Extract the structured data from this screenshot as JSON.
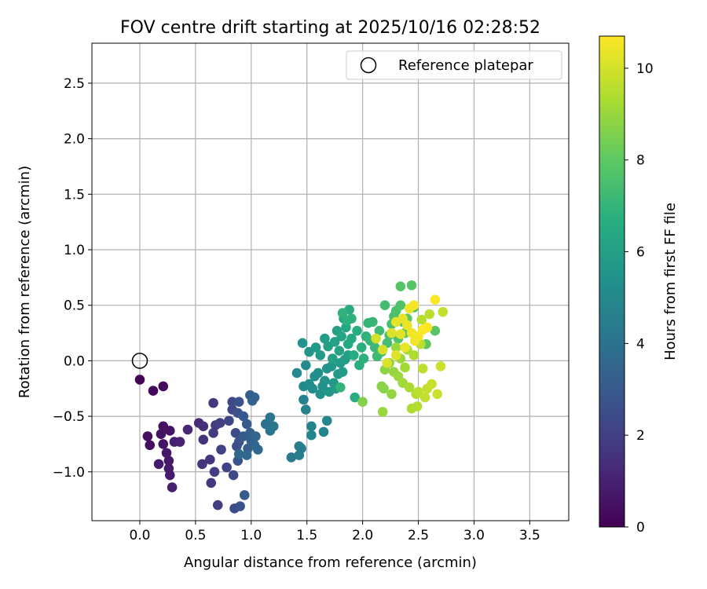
{
  "chart_data": {
    "type": "scatter",
    "title": "FOV centre drift starting at 2025/10/16 02:28:52",
    "xlabel": "Angular distance from reference (arcmin)",
    "ylabel": "Rotation from reference (arcmin)",
    "xlim": [
      -0.43,
      3.85
    ],
    "ylim": [
      -1.44,
      2.86
    ],
    "xticks": [
      0.0,
      0.5,
      1.0,
      1.5,
      2.0,
      2.5,
      3.0,
      3.5
    ],
    "xtick_labels": [
      "0.0",
      "0.5",
      "1.0",
      "1.5",
      "2.0",
      "2.5",
      "3.0",
      "3.5"
    ],
    "yticks": [
      -1.0,
      -0.5,
      0.0,
      0.5,
      1.0,
      1.5,
      2.0,
      2.5
    ],
    "ytick_labels": [
      "−1.0",
      "−0.5",
      "0.0",
      "0.5",
      "1.0",
      "1.5",
      "2.0",
      "2.5"
    ],
    "grid": true,
    "legend": {
      "placement": "upper right",
      "entries": [
        {
          "label": "Reference platepar",
          "marker": "open-circle"
        }
      ]
    },
    "reference_point": {
      "x": 0.0,
      "y": 0.0
    },
    "colorbar": {
      "label": "Hours from first FF file",
      "colormap": "viridis",
      "range": [
        0,
        10.7
      ],
      "ticks": [
        0,
        2,
        4,
        6,
        8,
        10
      ],
      "tick_labels": [
        "0",
        "2",
        "4",
        "6",
        "8",
        "10"
      ]
    },
    "points": [
      [
        0.0,
        -0.17,
        0.05
      ],
      [
        0.12,
        -0.27,
        0.2
      ],
      [
        0.21,
        -0.23,
        0.3
      ],
      [
        0.07,
        -0.68,
        0.35
      ],
      [
        0.09,
        -0.76,
        0.4
      ],
      [
        0.21,
        -0.59,
        0.45
      ],
      [
        0.19,
        -0.66,
        0.5
      ],
      [
        0.27,
        -0.63,
        0.55
      ],
      [
        0.21,
        -0.75,
        0.6
      ],
      [
        0.24,
        -0.83,
        0.65
      ],
      [
        0.26,
        -0.9,
        0.7
      ],
      [
        0.17,
        -0.93,
        0.75
      ],
      [
        0.26,
        -0.97,
        0.8
      ],
      [
        0.27,
        -1.03,
        0.85
      ],
      [
        0.29,
        -1.14,
        0.9
      ],
      [
        0.31,
        -0.73,
        0.95
      ],
      [
        0.36,
        -0.73,
        1.0
      ],
      [
        0.43,
        -0.62,
        1.2
      ],
      [
        0.53,
        -0.56,
        1.3
      ],
      [
        0.57,
        -0.59,
        1.45
      ],
      [
        0.57,
        -0.71,
        1.55
      ],
      [
        0.56,
        -0.93,
        1.6
      ],
      [
        0.63,
        -0.89,
        1.65
      ],
      [
        0.64,
        -1.1,
        1.7
      ],
      [
        0.66,
        -0.38,
        1.75
      ],
      [
        0.68,
        -0.58,
        1.8
      ],
      [
        0.66,
        -0.65,
        1.85
      ],
      [
        0.67,
        -1.0,
        1.9
      ],
      [
        0.7,
        -1.3,
        1.95
      ],
      [
        0.72,
        -0.56,
        2.05
      ],
      [
        0.73,
        -0.8,
        2.1
      ],
      [
        0.78,
        -0.96,
        2.15
      ],
      [
        0.8,
        -0.54,
        2.25
      ],
      [
        0.83,
        -0.37,
        2.3
      ],
      [
        0.83,
        -0.44,
        2.35
      ],
      [
        0.84,
        -1.03,
        2.4
      ],
      [
        0.85,
        -1.33,
        2.45
      ],
      [
        0.86,
        -0.65,
        2.5
      ],
      [
        0.87,
        -0.77,
        2.55
      ],
      [
        0.88,
        -0.47,
        2.6
      ],
      [
        0.89,
        -0.37,
        2.65
      ],
      [
        0.89,
        -0.73,
        2.7
      ],
      [
        0.9,
        -1.31,
        2.75
      ],
      [
        0.88,
        -0.9,
        2.8
      ],
      [
        0.93,
        -0.5,
        2.9
      ],
      [
        0.93,
        -0.68,
        3.0
      ],
      [
        0.94,
        -1.21,
        3.05
      ],
      [
        0.96,
        -0.57,
        3.1
      ],
      [
        0.97,
        -0.79,
        3.15
      ],
      [
        0.99,
        -0.31,
        3.2
      ],
      [
        0.99,
        -0.65,
        3.25
      ],
      [
        1.0,
        -0.72,
        3.3
      ],
      [
        1.01,
        -0.36,
        3.35
      ],
      [
        1.03,
        -0.33,
        3.4
      ],
      [
        1.03,
        -0.76,
        3.45
      ],
      [
        1.04,
        -0.68,
        3.5
      ],
      [
        1.06,
        -0.8,
        3.55
      ],
      [
        0.89,
        -0.84,
        3.6
      ],
      [
        0.96,
        -0.85,
        3.65
      ],
      [
        1.13,
        -0.57,
        4.0
      ],
      [
        1.17,
        -0.51,
        4.05
      ],
      [
        1.17,
        -0.63,
        4.1
      ],
      [
        1.2,
        -0.59,
        4.15
      ],
      [
        1.36,
        -0.87,
        4.4
      ],
      [
        1.43,
        -0.85,
        4.45
      ],
      [
        1.43,
        -0.77,
        4.5
      ],
      [
        1.45,
        -0.79,
        4.55
      ],
      [
        1.47,
        -0.35,
        4.6
      ],
      [
        1.49,
        -0.44,
        4.7
      ],
      [
        1.54,
        -0.59,
        4.75
      ],
      [
        1.54,
        -0.67,
        4.8
      ],
      [
        1.65,
        -0.64,
        4.85
      ],
      [
        1.68,
        -0.54,
        4.9
      ],
      [
        1.41,
        -0.11,
        5.0
      ],
      [
        1.47,
        -0.23,
        5.05
      ],
      [
        1.49,
        -0.04,
        5.1
      ],
      [
        1.55,
        -0.25,
        5.15
      ],
      [
        1.52,
        -0.21,
        5.2
      ],
      [
        1.57,
        -0.14,
        5.25
      ],
      [
        1.6,
        -0.11,
        5.3
      ],
      [
        1.62,
        -0.3,
        5.35
      ],
      [
        1.64,
        -0.23,
        5.4
      ],
      [
        1.66,
        -0.18,
        5.45
      ],
      [
        1.68,
        -0.07,
        5.5
      ],
      [
        1.7,
        -0.28,
        5.55
      ],
      [
        1.72,
        -0.05,
        5.6
      ],
      [
        1.74,
        -0.2,
        5.65
      ],
      [
        1.76,
        -0.25,
        5.7
      ],
      [
        1.78,
        -0.12,
        5.75
      ],
      [
        1.8,
        -0.02,
        5.8
      ],
      [
        1.82,
        -0.1,
        5.85
      ],
      [
        1.84,
        0.01,
        5.9
      ],
      [
        1.87,
        0.05,
        5.95
      ],
      [
        1.46,
        0.16,
        5.5
      ],
      [
        1.52,
        0.08,
        5.6
      ],
      [
        1.58,
        0.12,
        5.7
      ],
      [
        1.62,
        0.05,
        5.8
      ],
      [
        1.66,
        0.2,
        5.9
      ],
      [
        1.69,
        0.13,
        6.0
      ],
      [
        1.73,
        0.02,
        6.05
      ],
      [
        1.75,
        0.17,
        6.1
      ],
      [
        1.77,
        0.27,
        6.15
      ],
      [
        1.79,
        0.09,
        6.2
      ],
      [
        1.81,
        0.22,
        6.25
      ],
      [
        1.83,
        0.38,
        6.3
      ],
      [
        1.85,
        0.3,
        6.35
      ],
      [
        1.87,
        0.15,
        6.4
      ],
      [
        1.88,
        0.46,
        6.45
      ],
      [
        1.9,
        0.2,
        6.5
      ],
      [
        1.92,
        0.05,
        6.55
      ],
      [
        1.93,
        -0.33,
        6.6
      ],
      [
        1.95,
        0.27,
        6.65
      ],
      [
        1.97,
        -0.04,
        6.7
      ],
      [
        1.99,
        0.12,
        6.75
      ],
      [
        2.01,
        0.02,
        6.8
      ],
      [
        2.03,
        0.22,
        6.9
      ],
      [
        1.9,
        0.38,
        6.85
      ],
      [
        1.8,
        -0.24,
        6.95
      ],
      [
        1.82,
        0.43,
        6.9
      ],
      [
        1.86,
        0.36,
        6.8
      ],
      [
        2.05,
        0.34,
        7.0
      ],
      [
        2.07,
        0.18,
        7.05
      ],
      [
        2.09,
        0.35,
        7.1
      ],
      [
        2.11,
        0.12,
        7.15
      ],
      [
        2.13,
        0.04,
        7.2
      ],
      [
        2.15,
        0.27,
        7.25
      ],
      [
        2.17,
        0.08,
        7.3
      ],
      [
        2.2,
        0.5,
        7.35
      ],
      [
        2.22,
        0.16,
        7.4
      ],
      [
        2.24,
        0.23,
        7.45
      ],
      [
        2.26,
        0.33,
        7.5
      ],
      [
        2.28,
        0.4,
        7.55
      ],
      [
        2.3,
        0.45,
        7.6
      ],
      [
        2.32,
        0.2,
        7.65
      ],
      [
        2.34,
        0.67,
        7.8
      ],
      [
        2.34,
        0.5,
        7.7
      ],
      [
        2.36,
        0.35,
        7.75
      ],
      [
        2.38,
        0.25,
        7.9
      ],
      [
        2.4,
        0.38,
        7.95
      ],
      [
        2.44,
        0.68,
        7.85
      ],
      [
        2.46,
        0.48,
        7.8
      ],
      [
        2.65,
        0.27,
        7.9
      ],
      [
        2.57,
        0.15,
        7.95
      ],
      [
        2.0,
        -0.37,
        8.6
      ],
      [
        2.17,
        -0.23,
        8.7
      ],
      [
        2.19,
        -0.25,
        8.75
      ],
      [
        2.2,
        -0.08,
        8.8
      ],
      [
        2.24,
        -0.02,
        8.85
      ],
      [
        2.26,
        -0.3,
        8.9
      ],
      [
        2.28,
        -0.1,
        8.95
      ],
      [
        2.3,
        0.12,
        9.0
      ],
      [
        2.32,
        -0.14,
        9.05
      ],
      [
        2.34,
        0.02,
        9.1
      ],
      [
        2.36,
        -0.2,
        9.15
      ],
      [
        2.38,
        -0.06,
        9.2
      ],
      [
        2.4,
        0.1,
        9.25
      ],
      [
        2.42,
        -0.24,
        9.3
      ],
      [
        2.44,
        -0.43,
        9.35
      ],
      [
        2.46,
        0.05,
        9.4
      ],
      [
        2.48,
        -0.3,
        9.45
      ],
      [
        2.49,
        -0.41,
        9.5
      ],
      [
        2.5,
        -0.28,
        9.55
      ],
      [
        2.52,
        0.15,
        9.6
      ],
      [
        2.54,
        -0.07,
        9.65
      ],
      [
        2.56,
        -0.33,
        9.7
      ],
      [
        2.58,
        -0.25,
        9.75
      ],
      [
        2.62,
        -0.21,
        9.8
      ],
      [
        2.67,
        -0.3,
        9.85
      ],
      [
        2.7,
        -0.05,
        9.9
      ],
      [
        2.18,
        -0.46,
        9.0
      ],
      [
        2.53,
        0.37,
        9.5
      ],
      [
        2.6,
        0.42,
        9.6
      ],
      [
        2.72,
        0.44,
        9.7
      ],
      [
        2.12,
        0.2,
        10.0
      ],
      [
        2.18,
        0.1,
        10.05
      ],
      [
        2.22,
        -0.02,
        10.1
      ],
      [
        2.26,
        0.25,
        10.15
      ],
      [
        2.3,
        0.05,
        10.2
      ],
      [
        2.34,
        0.24,
        10.25
      ],
      [
        2.36,
        0.38,
        10.3
      ],
      [
        2.38,
        0.12,
        10.35
      ],
      [
        2.4,
        0.32,
        10.4
      ],
      [
        2.42,
        0.47,
        10.45
      ],
      [
        2.44,
        0.25,
        10.5
      ],
      [
        2.46,
        0.5,
        10.55
      ],
      [
        2.5,
        0.22,
        10.6
      ],
      [
        2.54,
        0.28,
        10.65
      ],
      [
        2.58,
        0.3,
        10.7
      ],
      [
        2.65,
        0.55,
        10.7
      ],
      [
        2.47,
        0.18,
        10.5
      ],
      [
        2.3,
        0.35,
        10.3
      ]
    ]
  }
}
